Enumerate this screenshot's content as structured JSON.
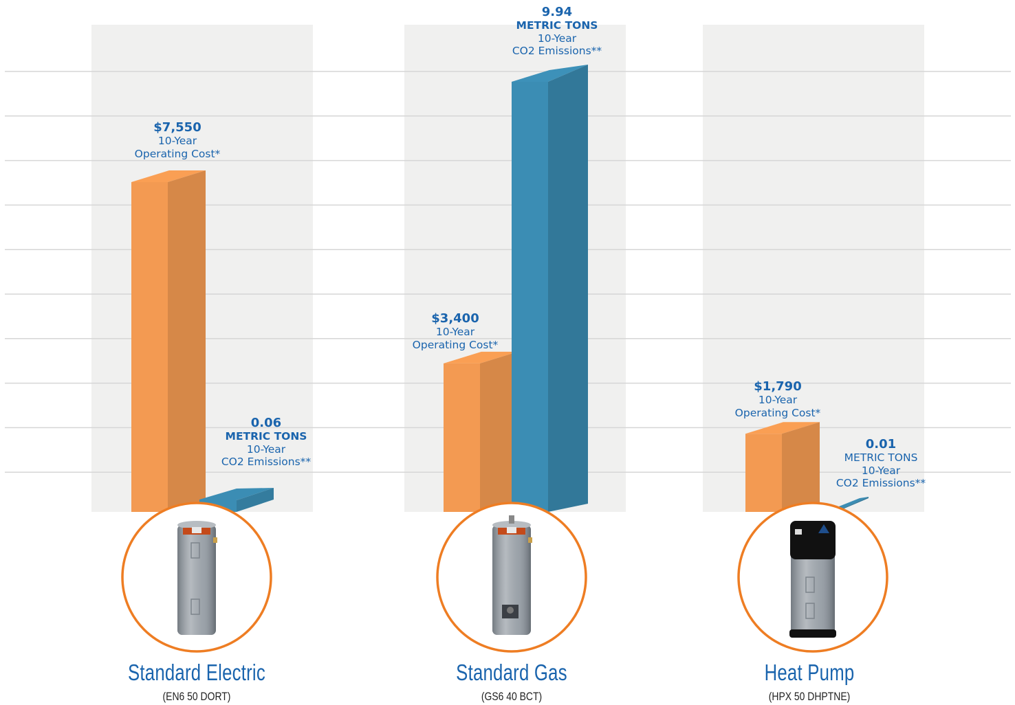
{
  "colors": {
    "cost_bar": "#f39a52",
    "emissions_bar": "#3b8db4",
    "label_text": "#1a64ad",
    "panel": "#f0f0ef",
    "circle_border": "#ee7d23"
  },
  "chart_data": {
    "type": "bar",
    "title": "",
    "grid": true,
    "series": [
      {
        "key": "cost",
        "values": [
          7550,
          3400,
          1790
        ]
      },
      {
        "key": "emissions",
        "values": [
          0.06,
          9.94,
          0.01
        ]
      }
    ],
    "categories": [
      {
        "name": "Standard Electric",
        "model": "(EN6 50 DORT)",
        "image_icon": "electric-water-heater-icon",
        "cost": {
          "value": "$7,550",
          "line1": "10-Year",
          "line2": "Operating Cost*"
        },
        "emissions": {
          "value": "0.06",
          "unit": "METRIC TONS",
          "line1": "10-Year",
          "line2": "CO2 Emissions**"
        }
      },
      {
        "name": "Standard Gas",
        "model": "(GS6 40 BCT)",
        "image_icon": "gas-water-heater-icon",
        "cost": {
          "value": "$3,400",
          "line1": "10-Year",
          "line2": "Operating Cost*"
        },
        "emissions": {
          "value": "9.94",
          "unit": "METRIC TONS",
          "line1": "10-Year",
          "line2": "CO2 Emissions**"
        }
      },
      {
        "name": "Heat Pump",
        "model": "(HPX 50 DHPTNE)",
        "image_icon": "heat-pump-water-heater-icon",
        "cost": {
          "value": "$1,790",
          "line1": "10-Year",
          "line2": "Operating Cost*"
        },
        "emissions": {
          "value": "0.01",
          "unit": "METRIC TONS",
          "line1": "10-Year",
          "line2": "CO2 Emissions**"
        }
      }
    ]
  }
}
